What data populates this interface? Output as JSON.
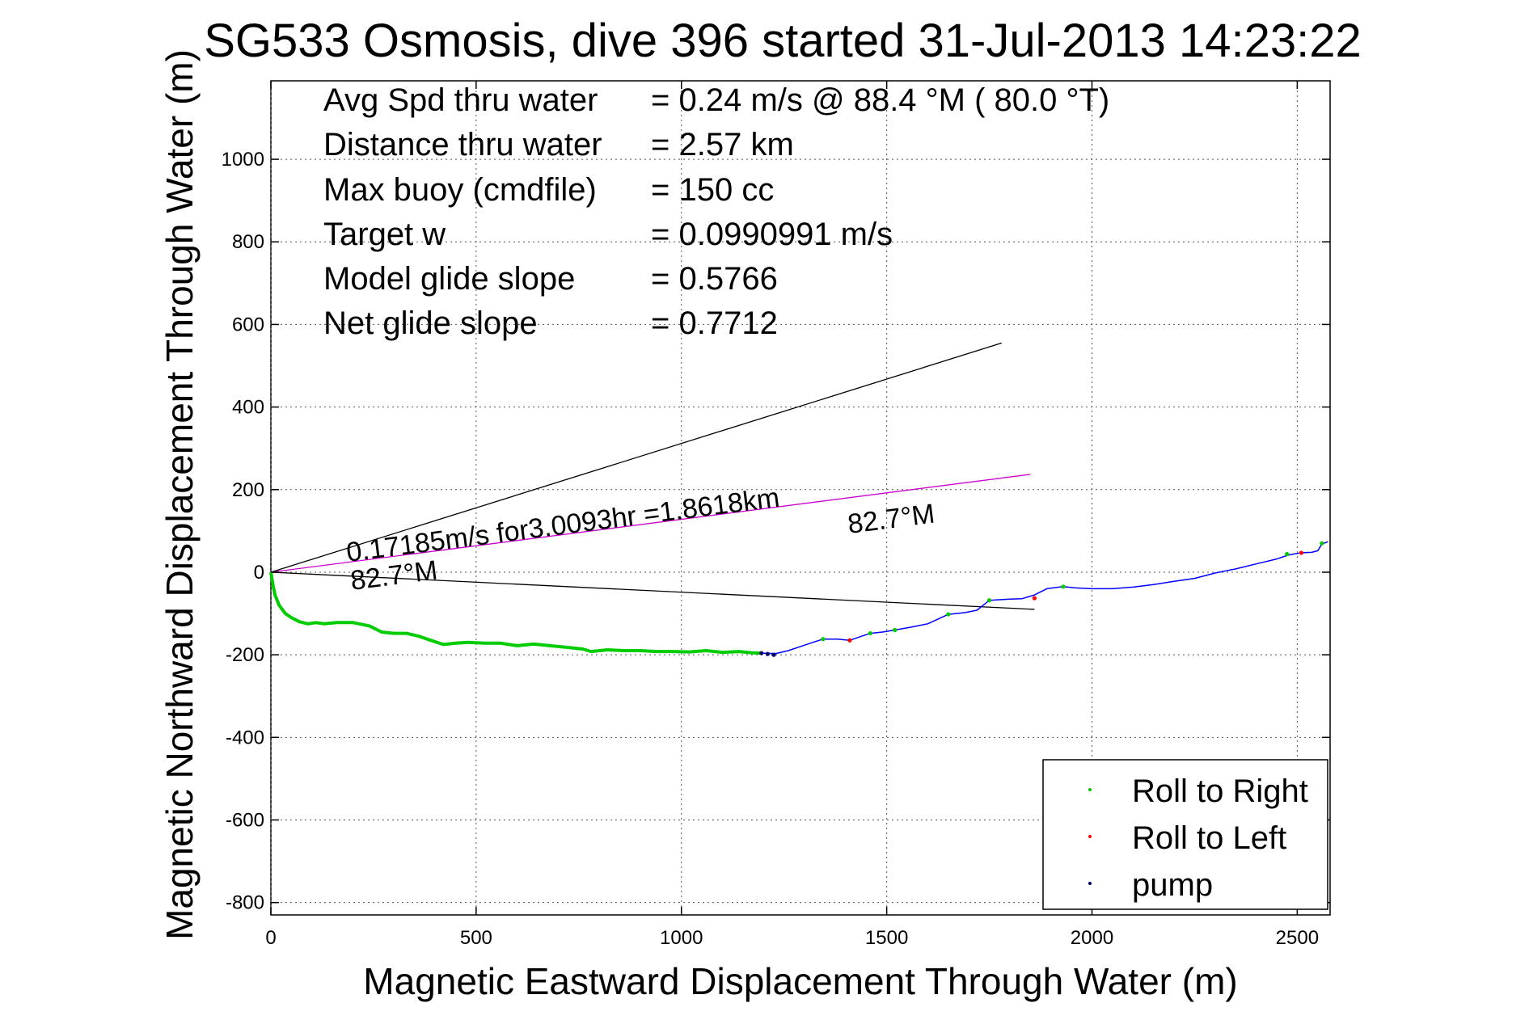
{
  "chart_data": {
    "type": "line",
    "title": "SG533 Osmosis, dive 396 started 31-Jul-2013 14:23:22",
    "xlabel": "Magnetic Eastward Displacement Through Water (m)",
    "ylabel": "Magnetic Northward Displacement Through Water (m)",
    "xlim": [
      0,
      2580
    ],
    "ylim": [
      -830,
      1190
    ],
    "x_ticks": [
      0,
      500,
      1000,
      1500,
      2000,
      2500
    ],
    "y_ticks": [
      -800,
      -600,
      -400,
      -200,
      0,
      200,
      400,
      600,
      800,
      1000
    ],
    "grid": true,
    "legend_position": "bottom-right",
    "colors": {
      "track": "#0000ff",
      "roll_right": "#00cc00",
      "roll_left": "#ff0000",
      "pump": "#000066",
      "cone": "#000000",
      "heading_line": "#cc00cc"
    },
    "stats": [
      {
        "label": "Avg Spd thru water",
        "value": "=  0.24 m/s @  88.4 °M ( 80.0 °T)"
      },
      {
        "label": "Distance thru water",
        "value": "=  2.57 km"
      },
      {
        "label": "Max buoy (cmdfile)",
        "value": "= 150 cc"
      },
      {
        "label": "Target w",
        "value": "= 0.0990991 m/s"
      },
      {
        "label": "Model glide slope",
        "value": "= 0.5766"
      },
      {
        "label": "Net glide slope",
        "value": "= 0.7712"
      }
    ],
    "annotations": {
      "speed_line": "0.17185m/s for3.0093hr =1.8618km",
      "heading_end": "82.7°M",
      "heading_start": "82.7°M"
    },
    "legend": [
      "Roll to Right",
      "Roll to Left",
      "pump"
    ],
    "cone_lines": [
      {
        "x": [
          0,
          1780
        ],
        "y": [
          0,
          555
        ]
      },
      {
        "x": [
          0,
          1860
        ],
        "y": [
          0,
          -90
        ]
      }
    ],
    "heading_line": {
      "x": [
        0,
        1850
      ],
      "y": [
        0,
        237
      ]
    },
    "series": [
      {
        "name": "Roll to Right",
        "x": [
          0,
          5,
          10,
          20,
          35,
          50,
          70,
          90,
          110,
          130,
          160,
          200,
          240,
          270,
          300,
          330,
          360,
          390,
          420,
          450,
          480,
          520,
          560,
          600,
          640,
          680,
          720,
          760,
          780,
          820,
          860,
          900,
          940,
          980,
          1020,
          1060,
          1100,
          1140,
          1170,
          1195
        ],
        "y": [
          0,
          -30,
          -55,
          -80,
          -100,
          -110,
          -120,
          -125,
          -122,
          -125,
          -122,
          -122,
          -130,
          -145,
          -148,
          -148,
          -155,
          -165,
          -175,
          -172,
          -170,
          -172,
          -172,
          -178,
          -174,
          -178,
          -182,
          -186,
          -192,
          -188,
          -190,
          -190,
          -192,
          -192,
          -193,
          -190,
          -194,
          -192,
          -195,
          -196
        ]
      },
      {
        "name": "track",
        "x": [
          1195,
          1230,
          1260,
          1290,
          1320,
          1345,
          1380,
          1410,
          1430,
          1460,
          1490,
          1520,
          1560,
          1600,
          1650,
          1690,
          1720,
          1750,
          1800,
          1830,
          1860,
          1890,
          1930,
          1960,
          2000,
          2050,
          2100,
          2150,
          2200,
          2250,
          2300,
          2350,
          2400,
          2450,
          2480,
          2510,
          2535,
          2550,
          2560,
          2575
        ],
        "y": [
          -196,
          -197,
          -190,
          -180,
          -170,
          -162,
          -162,
          -165,
          -158,
          -148,
          -145,
          -140,
          -133,
          -125,
          -102,
          -98,
          -92,
          -68,
          -65,
          -64,
          -55,
          -40,
          -35,
          -38,
          -40,
          -40,
          -36,
          -30,
          -22,
          -15,
          -2,
          8,
          20,
          32,
          42,
          47,
          48,
          52,
          68,
          74
        ]
      }
    ],
    "markers": {
      "roll_right": [
        [
          1345,
          -162
        ],
        [
          1460,
          -148
        ],
        [
          1520,
          -140
        ],
        [
          1650,
          -102
        ],
        [
          1750,
          -68
        ],
        [
          1930,
          -35
        ],
        [
          2475,
          44
        ],
        [
          2560,
          70
        ]
      ],
      "roll_left": [
        [
          1410,
          -165
        ],
        [
          1860,
          -63
        ],
        [
          2510,
          47
        ]
      ],
      "pump": [
        [
          1195,
          -196
        ],
        [
          1210,
          -198
        ],
        [
          1225,
          -200
        ]
      ]
    }
  }
}
